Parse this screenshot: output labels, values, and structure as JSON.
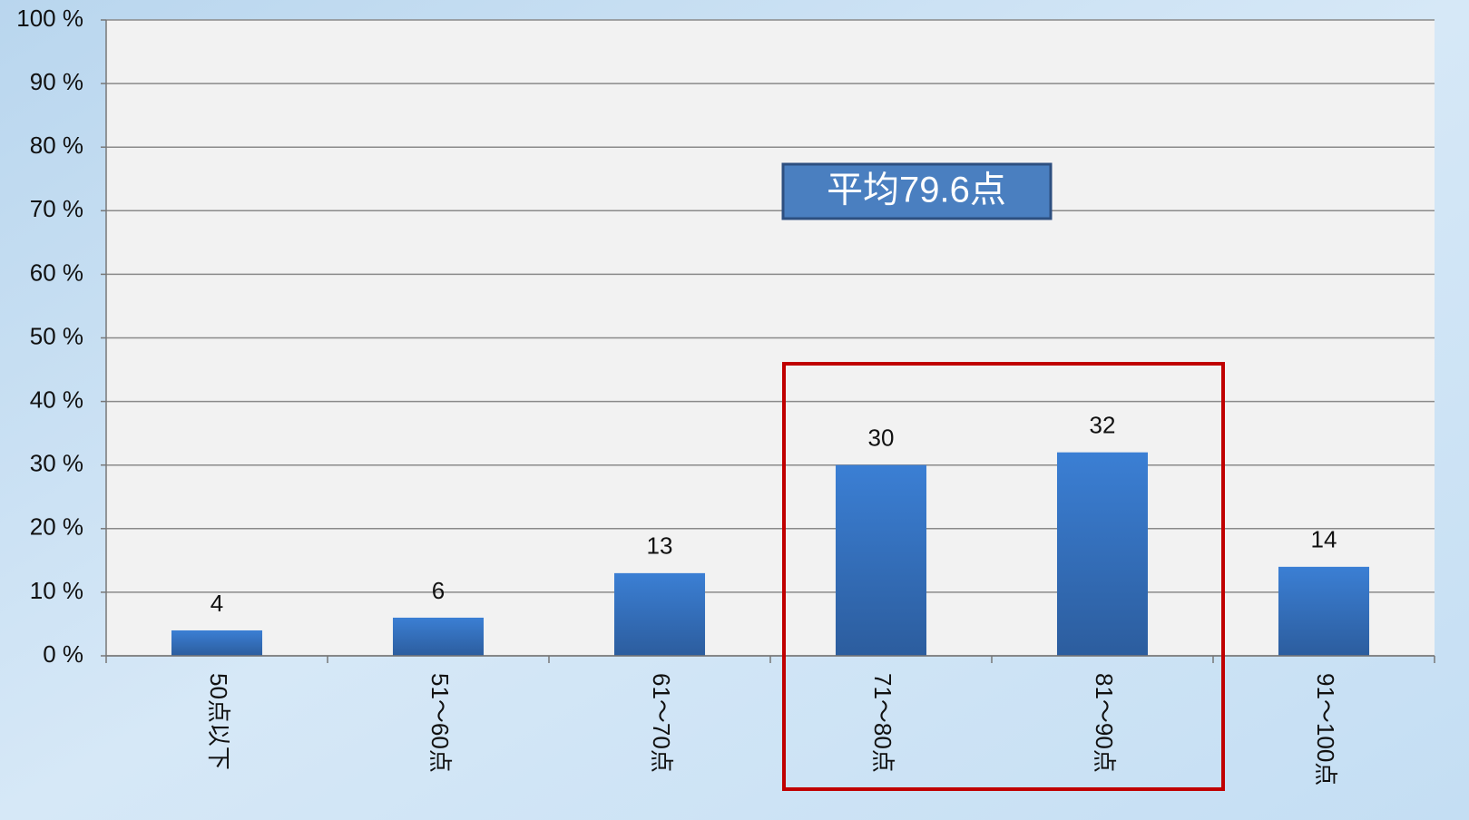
{
  "chart_data": {
    "type": "bar",
    "categories": [
      "50点以下",
      "51～60点",
      "61～70点",
      "71～80点",
      "81～90点",
      "91～100点"
    ],
    "values": [
      4,
      6,
      13,
      30,
      32,
      14
    ],
    "color": "#3a78c8",
    "ylim": [
      0,
      100
    ],
    "yticks": [
      {
        "value": 0,
        "label": "0 %"
      },
      {
        "value": 10,
        "label": "10 %"
      },
      {
        "value": 20,
        "label": "20 %"
      },
      {
        "value": 30,
        "label": "30 %"
      },
      {
        "value": 40,
        "label": "40 %"
      },
      {
        "value": 50,
        "label": "50 %"
      },
      {
        "value": 60,
        "label": "60 %"
      },
      {
        "value": 70,
        "label": "70 %"
      },
      {
        "value": 80,
        "label": "80 %"
      },
      {
        "value": 90,
        "label": "90 %"
      },
      {
        "value": 100,
        "label": "100 %"
      }
    ],
    "grid": true,
    "annotation": "平均79.6点"
  }
}
